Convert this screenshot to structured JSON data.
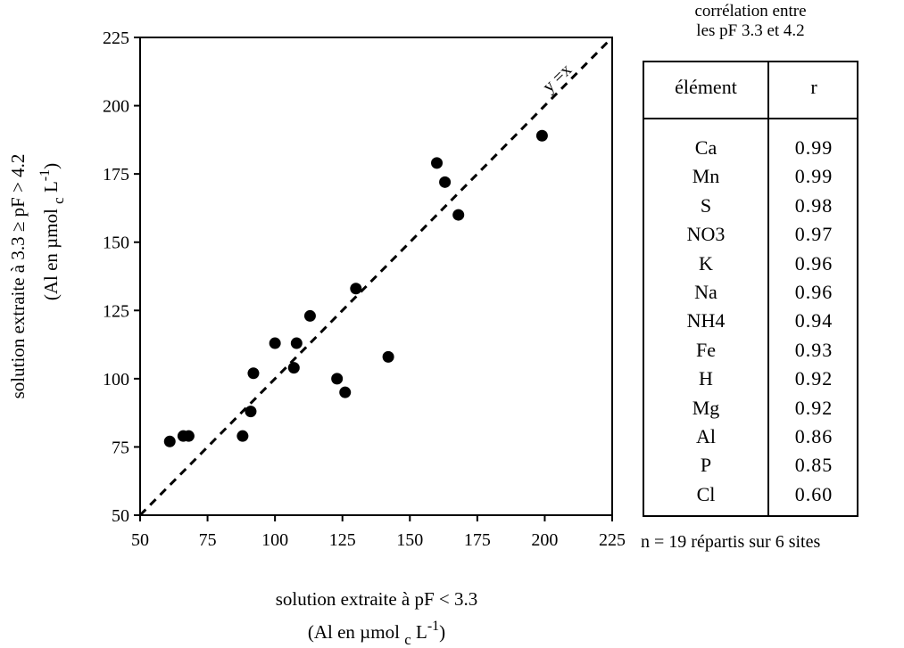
{
  "chart_data": {
    "type": "scatter",
    "xlabel": "solution extraite à pF < 3.3",
    "xlabel_unit": "(Al en µmol",
    "ylabel": "solution extraite à 3.3 ≥ pF > 4.2",
    "ylabel_unit": "(Al en µmol",
    "unit_subscript": "c",
    "unit_tail": "L",
    "unit_exponent": "-1",
    "unit_close": ")",
    "xlim": [
      50,
      225
    ],
    "ylim": [
      50,
      225
    ],
    "xticks": [
      50,
      75,
      100,
      125,
      150,
      175,
      200,
      225
    ],
    "yticks": [
      50,
      75,
      100,
      125,
      150,
      175,
      200,
      225
    ],
    "reference_line_label": "y =x",
    "points": [
      {
        "x": 61,
        "y": 77
      },
      {
        "x": 66,
        "y": 79
      },
      {
        "x": 68,
        "y": 79
      },
      {
        "x": 88,
        "y": 79
      },
      {
        "x": 91,
        "y": 88
      },
      {
        "x": 92,
        "y": 102
      },
      {
        "x": 100,
        "y": 113
      },
      {
        "x": 107,
        "y": 104
      },
      {
        "x": 108,
        "y": 113
      },
      {
        "x": 113,
        "y": 123
      },
      {
        "x": 123,
        "y": 100
      },
      {
        "x": 126,
        "y": 95
      },
      {
        "x": 130,
        "y": 133
      },
      {
        "x": 142,
        "y": 108
      },
      {
        "x": 160,
        "y": 179
      },
      {
        "x": 163,
        "y": 172
      },
      {
        "x": 168,
        "y": 160
      },
      {
        "x": 199,
        "y": 189
      }
    ]
  },
  "table": {
    "title_line1": "corrélation entre",
    "title_line2": "les pF 3.3 et 4.2",
    "header_element": "élément",
    "header_r": "r",
    "rows": [
      {
        "element": "Ca",
        "r": "0.99"
      },
      {
        "element": "Mn",
        "r": "0.99"
      },
      {
        "element": "S",
        "r": "0.98"
      },
      {
        "element": "NO3",
        "r": "0.97"
      },
      {
        "element": "K",
        "r": "0.96"
      },
      {
        "element": "Na",
        "r": "0.96"
      },
      {
        "element": "NH4",
        "r": "0.94"
      },
      {
        "element": "Fe",
        "r": "0.93"
      },
      {
        "element": "H",
        "r": "0.92"
      },
      {
        "element": "Mg",
        "r": "0.92"
      },
      {
        "element": "Al",
        "r": "0.86"
      },
      {
        "element": "P",
        "r": "0.85"
      },
      {
        "element": "Cl",
        "r": "0.60"
      }
    ],
    "footnote": "n = 19 répartis sur 6 sites"
  }
}
